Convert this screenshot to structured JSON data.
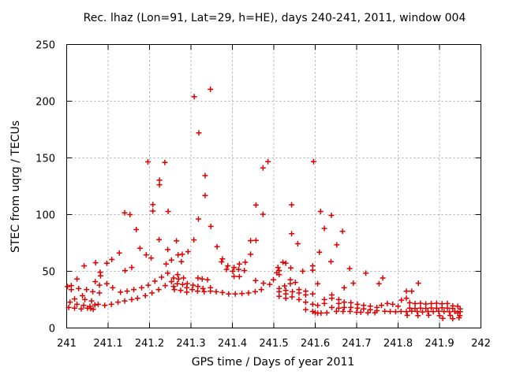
{
  "window": {
    "background": "#ffffff",
    "border_color": "#000000",
    "text_color": "#000000"
  },
  "chart_data": {
    "type": "scatter",
    "title": "Rec. lhaz (Lon=91, Lat=29, h=HE), days 240-241, 2011, window 004",
    "xlabel": "GPS time / Days of year 2011",
    "ylabel": "STEC from uqrg / TECUs",
    "xlim": [
      241,
      242
    ],
    "ylim": [
      0,
      250
    ],
    "xticks": [
      241,
      241.1,
      241.2,
      241.3,
      241.4,
      241.5,
      241.6,
      241.7,
      241.8,
      241.9,
      242
    ],
    "xtick_labels": [
      "241",
      "241.1",
      "241.2",
      "241.3",
      "241.4",
      "241.5",
      "241.6",
      "241.7",
      "241.8",
      "241.9",
      "242"
    ],
    "yticks": [
      0,
      50,
      100,
      150,
      200,
      250
    ],
    "ytick_labels": [
      "0",
      "50",
      "100",
      "150",
      "200",
      "250"
    ],
    "grid": true,
    "grid_color": "#aaaaaa",
    "legend_position": "none",
    "marker": {
      "shape": "plus",
      "color": "#e00000",
      "size": 7,
      "stroke_width": 1.5
    },
    "points": [
      [
        241.002,
        36.5
      ],
      [
        241.005,
        18.1
      ],
      [
        241.008,
        22.8
      ],
      [
        241.011,
        37.4
      ],
      [
        241.011,
        33.9
      ],
      [
        241.019,
        25.6
      ],
      [
        241.019,
        17.6
      ],
      [
        241.025,
        43.2
      ],
      [
        241.025,
        20.9
      ],
      [
        241.029,
        34.8
      ],
      [
        241.035,
        16.9
      ],
      [
        241.038,
        28.5
      ],
      [
        241.041,
        20.0
      ],
      [
        241.042,
        54.8
      ],
      [
        241.044,
        25.1
      ],
      [
        241.048,
        33.9
      ],
      [
        241.05,
        17.6
      ],
      [
        241.056,
        19.0
      ],
      [
        241.058,
        17.2
      ],
      [
        241.06,
        23.9
      ],
      [
        241.063,
        32.0
      ],
      [
        241.064,
        16.5
      ],
      [
        241.068,
        20.3
      ],
      [
        241.069,
        40.9
      ],
      [
        241.07,
        57.6
      ],
      [
        241.076,
        20.9
      ],
      [
        241.079,
        30.9
      ],
      [
        241.079,
        37.8
      ],
      [
        241.081,
        49.2
      ],
      [
        241.082,
        46.0
      ],
      [
        241.092,
        20.0
      ],
      [
        241.097,
        57.1
      ],
      [
        241.097,
        39.0
      ],
      [
        241.108,
        20.9
      ],
      [
        241.109,
        60.4
      ],
      [
        241.111,
        35.5
      ],
      [
        241.124,
        22.8
      ],
      [
        241.127,
        66.1
      ],
      [
        241.13,
        31.6
      ],
      [
        241.14,
        23.9
      ],
      [
        241.14,
        101.5
      ],
      [
        241.141,
        50.6
      ],
      [
        241.146,
        32.5
      ],
      [
        241.153,
        100.0
      ],
      [
        241.157,
        25.1
      ],
      [
        241.157,
        53.4
      ],
      [
        241.162,
        33.9
      ],
      [
        241.168,
        86.8
      ],
      [
        241.171,
        26.2
      ],
      [
        241.177,
        70.3
      ],
      [
        241.181,
        35.5
      ],
      [
        241.19,
        28.5
      ],
      [
        241.192,
        64.5
      ],
      [
        241.196,
        146.5
      ],
      [
        241.197,
        37.8
      ],
      [
        241.204,
        61.7
      ],
      [
        241.206,
        30.9
      ],
      [
        241.208,
        108.8
      ],
      [
        241.208,
        103.1
      ],
      [
        241.213,
        41.3
      ],
      [
        241.222,
        33.9
      ],
      [
        241.223,
        78.0
      ],
      [
        241.224,
        130.4
      ],
      [
        241.224,
        126.3
      ],
      [
        241.229,
        44.8
      ],
      [
        241.237,
        146.0
      ],
      [
        241.238,
        37.4
      ],
      [
        241.24,
        56.4
      ],
      [
        241.244,
        69.2
      ],
      [
        241.244,
        48.3
      ],
      [
        241.245,
        102.8
      ],
      [
        241.253,
        40.9
      ],
      [
        241.253,
        59.9
      ],
      [
        241.308,
        204.0
      ],
      [
        241.318,
        96.1
      ],
      [
        241.319,
        172.0
      ],
      [
        241.334,
        134.4
      ],
      [
        241.334,
        116.8
      ],
      [
        241.347,
        210.5
      ],
      [
        241.348,
        89.6
      ],
      [
        241.258,
        44.1
      ],
      [
        241.258,
        36.7
      ],
      [
        241.26,
        33.9
      ],
      [
        241.265,
        76.8
      ],
      [
        241.267,
        39.0
      ],
      [
        241.268,
        47.1
      ],
      [
        241.269,
        64.5
      ],
      [
        241.27,
        43.2
      ],
      [
        241.275,
        33.2
      ],
      [
        241.277,
        58.5
      ],
      [
        241.279,
        65.0
      ],
      [
        241.28,
        38.5
      ],
      [
        241.282,
        44.1
      ],
      [
        241.29,
        35.5
      ],
      [
        241.29,
        31.6
      ],
      [
        241.291,
        39.2
      ],
      [
        241.293,
        67.3
      ],
      [
        241.303,
        33.9
      ],
      [
        241.305,
        37.8
      ],
      [
        241.307,
        77.7
      ],
      [
        241.316,
        32.5
      ],
      [
        241.317,
        36.7
      ],
      [
        241.317,
        44.1
      ],
      [
        241.327,
        43.2
      ],
      [
        241.329,
        34.8
      ],
      [
        241.332,
        32.0
      ],
      [
        241.34,
        42.5
      ],
      [
        241.347,
        32.5
      ],
      [
        241.347,
        35.5
      ],
      [
        241.361,
        32.0
      ],
      [
        241.363,
        71.7
      ],
      [
        241.374,
        58.3
      ],
      [
        241.376,
        61.0
      ],
      [
        241.376,
        31.3
      ],
      [
        241.386,
        51.7
      ],
      [
        241.389,
        54.8
      ],
      [
        241.391,
        30.1
      ],
      [
        241.401,
        50.1
      ],
      [
        241.404,
        53.4
      ],
      [
        241.404,
        45.5
      ],
      [
        241.407,
        30.1
      ],
      [
        241.415,
        51.7
      ],
      [
        241.417,
        56.4
      ],
      [
        241.417,
        45.3
      ],
      [
        241.423,
        30.4
      ],
      [
        241.429,
        50.6
      ],
      [
        241.431,
        58.0
      ],
      [
        241.439,
        30.9
      ],
      [
        241.444,
        77.0
      ],
      [
        241.444,
        65.0
      ],
      [
        241.455,
        32.0
      ],
      [
        241.456,
        41.8
      ],
      [
        241.457,
        77.3
      ],
      [
        241.47,
        33.9
      ],
      [
        241.475,
        39.5
      ],
      [
        241.49,
        38.5
      ],
      [
        241.499,
        42.5
      ],
      [
        241.457,
        108.4
      ],
      [
        241.474,
        141.1
      ],
      [
        241.474,
        100.3
      ],
      [
        241.486,
        146.7
      ],
      [
        241.543,
        108.6
      ],
      [
        241.543,
        83.1
      ],
      [
        241.596,
        146.7
      ],
      [
        241.613,
        102.8
      ],
      [
        241.622,
        87.8
      ],
      [
        241.639,
        99.3
      ],
      [
        241.666,
        85.2
      ],
      [
        241.507,
        48.7
      ],
      [
        241.51,
        53.4
      ],
      [
        241.513,
        50.6
      ],
      [
        241.513,
        47.1
      ],
      [
        241.513,
        34.8
      ],
      [
        241.513,
        32.0
      ],
      [
        241.513,
        27.9
      ],
      [
        241.522,
        58.0
      ],
      [
        241.526,
        37.1
      ],
      [
        241.529,
        57.1
      ],
      [
        241.529,
        33.2
      ],
      [
        241.529,
        30.1
      ],
      [
        241.529,
        26.2
      ],
      [
        241.54,
        42.5
      ],
      [
        241.54,
        39.0
      ],
      [
        241.541,
        52.9
      ],
      [
        241.544,
        27.4
      ],
      [
        241.545,
        32.0
      ],
      [
        241.552,
        40.2
      ],
      [
        241.558,
        74.3
      ],
      [
        241.561,
        33.9
      ],
      [
        241.561,
        30.9
      ],
      [
        241.561,
        25.1
      ],
      [
        241.57,
        50.1
      ],
      [
        241.577,
        32.5
      ],
      [
        241.577,
        29.2
      ],
      [
        241.577,
        22.8
      ],
      [
        241.577,
        16.2
      ],
      [
        241.594,
        54.8
      ],
      [
        241.594,
        51.0
      ],
      [
        241.594,
        30.1
      ],
      [
        241.594,
        20.9
      ],
      [
        241.594,
        14.6
      ],
      [
        241.6,
        13.5
      ],
      [
        241.606,
        39.0
      ],
      [
        241.606,
        20.0
      ],
      [
        241.606,
        13.0
      ],
      [
        241.61,
        66.9
      ],
      [
        241.614,
        13.2
      ],
      [
        241.622,
        25.1
      ],
      [
        241.622,
        21.6
      ],
      [
        241.628,
        13.4
      ],
      [
        241.638,
        58.5
      ],
      [
        241.64,
        29.2
      ],
      [
        241.64,
        26.2
      ],
      [
        241.64,
        18.1
      ],
      [
        241.651,
        14.6
      ],
      [
        241.652,
        73.3
      ],
      [
        241.657,
        25.1
      ],
      [
        241.657,
        21.6
      ],
      [
        241.657,
        17.6
      ],
      [
        241.667,
        14.6
      ],
      [
        241.67,
        35.5
      ],
      [
        241.67,
        22.8
      ],
      [
        241.67,
        18.1
      ],
      [
        241.683,
        52.4
      ],
      [
        241.684,
        14.6
      ],
      [
        241.686,
        22.3
      ],
      [
        241.686,
        18.1
      ],
      [
        241.692,
        39.5
      ],
      [
        241.7,
        13.9
      ],
      [
        241.702,
        20.9
      ],
      [
        241.702,
        17.6
      ],
      [
        241.71,
        13.9
      ],
      [
        241.717,
        20.0
      ],
      [
        241.717,
        16.9
      ],
      [
        241.722,
        48.3
      ],
      [
        241.727,
        13.5
      ],
      [
        241.733,
        19.3
      ],
      [
        241.733,
        16.2
      ],
      [
        241.744,
        13.5
      ],
      [
        241.749,
        18.1
      ],
      [
        241.749,
        15.3
      ],
      [
        241.754,
        39.0
      ],
      [
        241.76,
        20.0
      ],
      [
        241.763,
        44.1
      ],
      [
        241.768,
        14.8
      ],
      [
        241.774,
        21.6
      ],
      [
        241.781,
        14.5
      ],
      [
        241.787,
        20.9
      ],
      [
        241.794,
        14.3
      ],
      [
        241.8,
        19.3
      ],
      [
        241.807,
        14.6
      ],
      [
        241.808,
        24.6
      ],
      [
        241.82,
        32.5
      ],
      [
        241.82,
        26.2
      ],
      [
        241.82,
        14.4
      ],
      [
        241.822,
        11.2
      ],
      [
        241.828,
        22.3
      ],
      [
        241.828,
        17.5
      ],
      [
        241.833,
        32.5
      ],
      [
        241.833,
        14.7
      ],
      [
        241.841,
        21.5
      ],
      [
        241.841,
        17.2
      ],
      [
        241.846,
        14.5
      ],
      [
        241.848,
        11.0
      ],
      [
        241.849,
        39.5
      ],
      [
        241.854,
        21.8
      ],
      [
        241.854,
        17.6
      ],
      [
        241.859,
        14.2
      ],
      [
        241.867,
        21.2
      ],
      [
        241.867,
        17.3
      ],
      [
        241.872,
        14.6
      ],
      [
        241.874,
        11.3
      ],
      [
        241.88,
        21.5
      ],
      [
        241.88,
        17.7
      ],
      [
        241.885,
        14.4
      ],
      [
        241.893,
        21.8
      ],
      [
        241.893,
        17.4
      ],
      [
        241.898,
        14.7
      ],
      [
        241.9,
        10.8
      ],
      [
        241.906,
        21.3
      ],
      [
        241.906,
        17.8
      ],
      [
        241.908,
        8.5
      ],
      [
        241.911,
        14.5
      ],
      [
        241.919,
        21.6
      ],
      [
        241.919,
        17.5
      ],
      [
        241.924,
        14.3
      ],
      [
        241.926,
        11.1
      ],
      [
        241.932,
        19.5
      ],
      [
        241.932,
        17.3
      ],
      [
        241.932,
        8.2
      ],
      [
        241.937,
        14.6
      ],
      [
        241.944,
        19.2
      ],
      [
        241.944,
        13.2
      ],
      [
        241.947,
        9.0
      ],
      [
        241.949,
        10.9
      ],
      [
        241.95,
        14.4
      ],
      [
        241.95,
        16.8
      ]
    ]
  }
}
